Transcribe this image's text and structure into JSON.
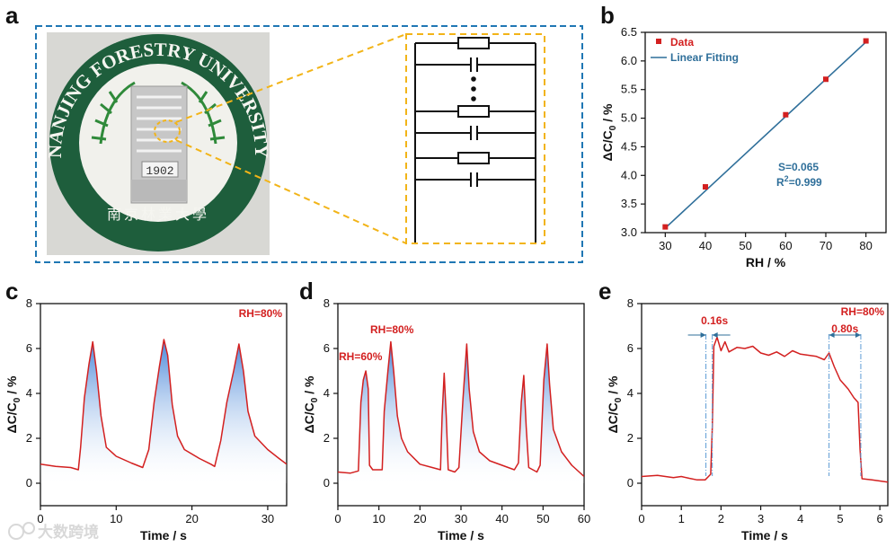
{
  "colors": {
    "red": "#d32020",
    "blue": "#2f6f9a",
    "frame_blue": "#1f77b4",
    "frame_yellow": "#f2b418",
    "fill_top": "#3d7fd6",
    "fill_bottom": "#ffffff"
  },
  "panels": {
    "a": "a",
    "b": "b",
    "c": "c",
    "d": "d",
    "e": "e"
  },
  "photo": {
    "logo_text": "NANJING FORESTRY UNIVERSITY",
    "logo_cn": "南京林業大學",
    "year": "1902"
  },
  "watermark": "大数跨境",
  "chart_data": [
    {
      "panel": "b",
      "type": "scatter",
      "x": [
        30,
        40,
        60,
        70,
        80
      ],
      "y": [
        3.1,
        3.8,
        5.06,
        5.68,
        6.35
      ],
      "fit": {
        "slope": 0.065,
        "intercept": 1.13,
        "x_range": [
          30,
          80
        ]
      },
      "xlabel": "RH / %",
      "ylabel_main": "ΔC/C",
      "ylabel_sub": "0",
      "ylabel_tail": " / %",
      "xlim": [
        25,
        85
      ],
      "ylim": [
        3.0,
        6.5
      ],
      "xticks": [
        30,
        40,
        50,
        60,
        70,
        80
      ],
      "yticks": [
        3.0,
        3.5,
        4.0,
        4.5,
        5.0,
        5.5,
        6.0,
        6.5
      ],
      "ytick_labels": [
        "3.0",
        "3.5",
        "4.0",
        "4.5",
        "5.0",
        "5.5",
        "6.0",
        "6.5"
      ],
      "legend": [
        "Data",
        "Linear Fitting"
      ],
      "annotations": {
        "s": "S=0.065",
        "r2_main": "R",
        "r2_sup": "2",
        "r2_tail": "=0.999"
      }
    },
    {
      "panel": "c",
      "type": "area",
      "xlabel": "Time / s",
      "ylabel_main": "ΔC/C",
      "ylabel_sub": "0",
      "ylabel_tail": " / %",
      "xlim": [
        0,
        32.5
      ],
      "ylim": [
        -1,
        8
      ],
      "xticks": [
        0,
        10,
        20,
        30
      ],
      "yticks": [
        0,
        2,
        4,
        6,
        8
      ],
      "annotation": "RH=80%",
      "points": [
        [
          0,
          0.85
        ],
        [
          2,
          0.75
        ],
        [
          4,
          0.7
        ],
        [
          5,
          0.6
        ],
        [
          5.3,
          1.6
        ],
        [
          5.8,
          3.8
        ],
        [
          6.4,
          5.3
        ],
        [
          6.9,
          6.3
        ],
        [
          7.4,
          5.0
        ],
        [
          8,
          3.0
        ],
        [
          8.7,
          1.6
        ],
        [
          10,
          1.2
        ],
        [
          12,
          0.9
        ],
        [
          13.5,
          0.7
        ],
        [
          14.3,
          1.5
        ],
        [
          15,
          3.6
        ],
        [
          15.7,
          5.2
        ],
        [
          16.3,
          6.4
        ],
        [
          16.8,
          5.7
        ],
        [
          17.4,
          3.5
        ],
        [
          18.1,
          2.1
        ],
        [
          19,
          1.5
        ],
        [
          21,
          1.1
        ],
        [
          22.5,
          0.85
        ],
        [
          23,
          0.75
        ],
        [
          23.8,
          1.9
        ],
        [
          24.6,
          3.6
        ],
        [
          25.5,
          5.0
        ],
        [
          26.2,
          6.2
        ],
        [
          26.8,
          5.0
        ],
        [
          27.4,
          3.2
        ],
        [
          28.3,
          2.1
        ],
        [
          30,
          1.5
        ],
        [
          31.5,
          1.1
        ],
        [
          32.5,
          0.85
        ]
      ]
    },
    {
      "panel": "d",
      "type": "area",
      "xlabel": "Time / s",
      "ylabel_main": "ΔC/C",
      "ylabel_sub": "0",
      "ylabel_tail": " / %",
      "xlim": [
        0,
        60
      ],
      "ylim": [
        -1,
        8
      ],
      "xticks": [
        0,
        10,
        20,
        30,
        40,
        50,
        60
      ],
      "yticks": [
        0,
        2,
        4,
        6,
        8
      ],
      "annotations": [
        "RH=60%",
        "RH=80%"
      ],
      "points": [
        [
          0,
          0.5
        ],
        [
          3,
          0.45
        ],
        [
          5,
          0.55
        ],
        [
          5.6,
          3.6
        ],
        [
          6.2,
          4.6
        ],
        [
          6.8,
          5.0
        ],
        [
          7.4,
          4.2
        ],
        [
          7.7,
          0.8
        ],
        [
          8.5,
          0.6
        ],
        [
          10.8,
          0.6
        ],
        [
          11.3,
          3.2
        ],
        [
          12.2,
          5.0
        ],
        [
          12.9,
          6.3
        ],
        [
          13.6,
          5.0
        ],
        [
          14.5,
          3.0
        ],
        [
          15.5,
          2.0
        ],
        [
          17,
          1.4
        ],
        [
          20,
          0.85
        ],
        [
          23,
          0.7
        ],
        [
          25,
          0.6
        ],
        [
          25.4,
          3.0
        ],
        [
          25.9,
          4.9
        ],
        [
          26.4,
          3.0
        ],
        [
          26.9,
          0.6
        ],
        [
          28.5,
          0.5
        ],
        [
          29.5,
          0.7
        ],
        [
          30.5,
          3.8
        ],
        [
          31.4,
          6.2
        ],
        [
          32,
          4.2
        ],
        [
          33,
          2.3
        ],
        [
          34.5,
          1.4
        ],
        [
          37,
          1.0
        ],
        [
          40,
          0.8
        ],
        [
          43,
          0.6
        ],
        [
          44,
          0.9
        ],
        [
          44.7,
          3.6
        ],
        [
          45.3,
          4.8
        ],
        [
          45.9,
          2.5
        ],
        [
          46.5,
          0.7
        ],
        [
          48.5,
          0.5
        ],
        [
          49.3,
          0.8
        ],
        [
          50.2,
          4.6
        ],
        [
          51,
          6.2
        ],
        [
          51.6,
          4.4
        ],
        [
          52.5,
          2.4
        ],
        [
          54.5,
          1.4
        ],
        [
          57,
          0.8
        ],
        [
          60,
          0.3
        ]
      ]
    },
    {
      "panel": "e",
      "type": "line",
      "xlabel": "Time / s",
      "ylabel_main": "ΔC/C",
      "ylabel_sub": "0",
      "ylabel_tail": " / %",
      "xlim": [
        0,
        6.2
      ],
      "ylim": [
        -1,
        8
      ],
      "xticks": [
        0,
        1,
        2,
        3,
        4,
        5,
        6
      ],
      "yticks": [
        0,
        2,
        4,
        6,
        8
      ],
      "annotation": "RH=80%",
      "response_label": "0.16s",
      "recovery_label": "0.80s",
      "marker_times": [
        1.62,
        1.78,
        4.72,
        5.52
      ],
      "points": [
        [
          0,
          0.3
        ],
        [
          0.4,
          0.35
        ],
        [
          0.6,
          0.3
        ],
        [
          0.8,
          0.25
        ],
        [
          1.0,
          0.3
        ],
        [
          1.2,
          0.22
        ],
        [
          1.4,
          0.15
        ],
        [
          1.6,
          0.15
        ],
        [
          1.74,
          0.4
        ],
        [
          1.78,
          2.5
        ],
        [
          1.82,
          6.1
        ],
        [
          1.9,
          6.5
        ],
        [
          2.0,
          5.9
        ],
        [
          2.1,
          6.3
        ],
        [
          2.2,
          5.85
        ],
        [
          2.4,
          6.05
        ],
        [
          2.6,
          6.0
        ],
        [
          2.8,
          6.1
        ],
        [
          3.0,
          5.8
        ],
        [
          3.2,
          5.7
        ],
        [
          3.4,
          5.85
        ],
        [
          3.6,
          5.65
        ],
        [
          3.8,
          5.9
        ],
        [
          4.0,
          5.75
        ],
        [
          4.2,
          5.7
        ],
        [
          4.4,
          5.65
        ],
        [
          4.6,
          5.5
        ],
        [
          4.72,
          5.8
        ],
        [
          4.85,
          5.2
        ],
        [
          5.0,
          4.6
        ],
        [
          5.2,
          4.2
        ],
        [
          5.35,
          3.8
        ],
        [
          5.45,
          3.6
        ],
        [
          5.5,
          1.5
        ],
        [
          5.55,
          0.2
        ],
        [
          5.8,
          0.15
        ],
        [
          6.0,
          0.1
        ],
        [
          6.2,
          0.05
        ]
      ]
    }
  ]
}
